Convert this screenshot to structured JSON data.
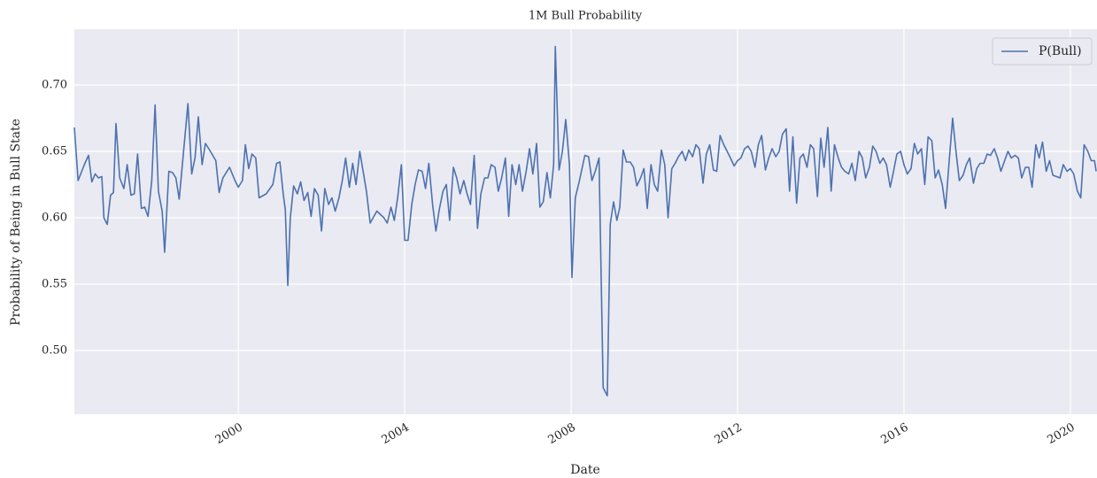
{
  "chart_data": {
    "type": "line",
    "title": "1M Bull Probability",
    "xlabel": "Date",
    "ylabel": "Probability of Being in Bull State",
    "x": [
      1996.06,
      1996.15,
      1996.3,
      1996.4,
      1996.48,
      1996.56,
      1996.64,
      1996.72,
      1996.77,
      1996.85,
      1996.93,
      1997.0,
      1997.06,
      1997.15,
      1997.25,
      1997.33,
      1997.42,
      1997.5,
      1997.58,
      1997.67,
      1997.75,
      1997.83,
      1997.92,
      1998.0,
      1998.08,
      1998.17,
      1998.23,
      1998.33,
      1998.42,
      1998.5,
      1998.58,
      1998.67,
      1998.79,
      1998.88,
      1998.96,
      1999.04,
      1999.13,
      1999.21,
      1999.33,
      1999.46,
      1999.54,
      1999.63,
      1999.79,
      1999.92,
      2000.0,
      2000.1,
      2000.17,
      2000.25,
      2000.33,
      2000.42,
      2000.5,
      2000.67,
      2000.83,
      2000.92,
      2001.0,
      2001.08,
      2001.13,
      2001.19,
      2001.25,
      2001.33,
      2001.42,
      2001.5,
      2001.58,
      2001.67,
      2001.75,
      2001.83,
      2001.92,
      2002.0,
      2002.08,
      2002.17,
      2002.25,
      2002.33,
      2002.42,
      2002.5,
      2002.58,
      2002.67,
      2002.75,
      2002.83,
      2002.92,
      2003.0,
      2003.08,
      2003.17,
      2003.33,
      2003.5,
      2003.58,
      2003.67,
      2003.75,
      2003.83,
      2003.92,
      2004.0,
      2004.08,
      2004.17,
      2004.25,
      2004.33,
      2004.42,
      2004.5,
      2004.58,
      2004.67,
      2004.75,
      2004.83,
      2004.92,
      2005.0,
      2005.08,
      2005.17,
      2005.25,
      2005.33,
      2005.42,
      2005.5,
      2005.58,
      2005.67,
      2005.75,
      2005.83,
      2005.92,
      2006.0,
      2006.08,
      2006.17,
      2006.25,
      2006.33,
      2006.42,
      2006.5,
      2006.58,
      2006.67,
      2006.75,
      2006.83,
      2006.92,
      2007.0,
      2007.08,
      2007.17,
      2007.25,
      2007.33,
      2007.42,
      2007.5,
      2007.58,
      2007.62,
      2007.71,
      2007.79,
      2007.87,
      2007.96,
      2008.02,
      2008.1,
      2008.2,
      2008.33,
      2008.42,
      2008.5,
      2008.58,
      2008.67,
      2008.77,
      2008.87,
      2008.94,
      2009.02,
      2009.1,
      2009.17,
      2009.25,
      2009.33,
      2009.42,
      2009.5,
      2009.58,
      2009.67,
      2009.75,
      2009.83,
      2009.92,
      2010.0,
      2010.08,
      2010.17,
      2010.25,
      2010.33,
      2010.42,
      2010.5,
      2010.58,
      2010.67,
      2010.75,
      2010.83,
      2010.92,
      2011.0,
      2011.08,
      2011.17,
      2011.25,
      2011.33,
      2011.42,
      2011.5,
      2011.58,
      2011.67,
      2011.83,
      2011.92,
      2012.0,
      2012.08,
      2012.17,
      2012.25,
      2012.33,
      2012.42,
      2012.5,
      2012.58,
      2012.67,
      2012.75,
      2012.83,
      2012.92,
      2013.0,
      2013.08,
      2013.17,
      2013.25,
      2013.33,
      2013.42,
      2013.5,
      2013.58,
      2013.67,
      2013.75,
      2013.83,
      2013.92,
      2014.0,
      2014.08,
      2014.17,
      2014.25,
      2014.33,
      2014.42,
      2014.5,
      2014.58,
      2014.67,
      2014.75,
      2014.83,
      2014.92,
      2015.0,
      2015.08,
      2015.17,
      2015.25,
      2015.33,
      2015.42,
      2015.5,
      2015.58,
      2015.67,
      2015.75,
      2015.83,
      2015.92,
      2016.0,
      2016.08,
      2016.17,
      2016.25,
      2016.33,
      2016.42,
      2016.5,
      2016.58,
      2016.67,
      2016.75,
      2016.83,
      2016.92,
      2017.0,
      2017.08,
      2017.17,
      2017.25,
      2017.33,
      2017.42,
      2017.5,
      2017.58,
      2017.67,
      2017.75,
      2017.83,
      2017.92,
      2018.0,
      2018.08,
      2018.17,
      2018.25,
      2018.33,
      2018.42,
      2018.5,
      2018.58,
      2018.67,
      2018.75,
      2018.83,
      2018.92,
      2019.0,
      2019.08,
      2019.17,
      2019.25,
      2019.33,
      2019.42,
      2019.5,
      2019.58,
      2019.67,
      2019.75,
      2019.83,
      2019.92,
      2020.0,
      2020.08,
      2020.17,
      2020.25,
      2020.33,
      2020.42,
      2020.5,
      2020.58,
      2020.62
    ],
    "series": [
      {
        "name": "P(Bull)",
        "color": "#4c72b0",
        "values": [
          0.668,
          0.628,
          0.64,
          0.647,
          0.627,
          0.633,
          0.63,
          0.631,
          0.6,
          0.595,
          0.617,
          0.619,
          0.671,
          0.63,
          0.622,
          0.64,
          0.617,
          0.618,
          0.648,
          0.607,
          0.608,
          0.601,
          0.628,
          0.685,
          0.62,
          0.605,
          0.574,
          0.635,
          0.634,
          0.63,
          0.614,
          0.645,
          0.686,
          0.633,
          0.645,
          0.676,
          0.64,
          0.656,
          0.65,
          0.643,
          0.619,
          0.63,
          0.638,
          0.628,
          0.623,
          0.628,
          0.655,
          0.637,
          0.648,
          0.645,
          0.615,
          0.618,
          0.625,
          0.641,
          0.642,
          0.618,
          0.606,
          0.549,
          0.6,
          0.624,
          0.618,
          0.627,
          0.613,
          0.619,
          0.601,
          0.622,
          0.617,
          0.59,
          0.622,
          0.61,
          0.615,
          0.605,
          0.615,
          0.628,
          0.645,
          0.623,
          0.641,
          0.625,
          0.65,
          0.635,
          0.62,
          0.596,
          0.605,
          0.6,
          0.596,
          0.608,
          0.598,
          0.615,
          0.64,
          0.583,
          0.583,
          0.61,
          0.625,
          0.636,
          0.635,
          0.622,
          0.641,
          0.61,
          0.59,
          0.606,
          0.62,
          0.625,
          0.598,
          0.638,
          0.63,
          0.618,
          0.628,
          0.618,
          0.61,
          0.647,
          0.592,
          0.618,
          0.63,
          0.63,
          0.64,
          0.638,
          0.62,
          0.63,
          0.645,
          0.601,
          0.64,
          0.625,
          0.64,
          0.62,
          0.635,
          0.652,
          0.633,
          0.656,
          0.608,
          0.612,
          0.634,
          0.615,
          0.64,
          0.729,
          0.636,
          0.65,
          0.674,
          0.64,
          0.555,
          0.615,
          0.628,
          0.647,
          0.646,
          0.628,
          0.635,
          0.645,
          0.472,
          0.466,
          0.595,
          0.612,
          0.598,
          0.608,
          0.651,
          0.642,
          0.642,
          0.638,
          0.624,
          0.63,
          0.637,
          0.607,
          0.64,
          0.625,
          0.62,
          0.651,
          0.64,
          0.6,
          0.637,
          0.641,
          0.646,
          0.65,
          0.643,
          0.651,
          0.646,
          0.655,
          0.652,
          0.626,
          0.648,
          0.655,
          0.636,
          0.635,
          0.662,
          0.655,
          0.645,
          0.639,
          0.643,
          0.645,
          0.652,
          0.654,
          0.65,
          0.638,
          0.655,
          0.662,
          0.636,
          0.645,
          0.652,
          0.646,
          0.65,
          0.663,
          0.667,
          0.62,
          0.661,
          0.611,
          0.645,
          0.648,
          0.638,
          0.655,
          0.652,
          0.616,
          0.66,
          0.638,
          0.668,
          0.62,
          0.655,
          0.645,
          0.638,
          0.635,
          0.633,
          0.641,
          0.628,
          0.65,
          0.645,
          0.63,
          0.638,
          0.654,
          0.65,
          0.641,
          0.645,
          0.64,
          0.623,
          0.635,
          0.648,
          0.65,
          0.64,
          0.633,
          0.637,
          0.656,
          0.648,
          0.652,
          0.625,
          0.661,
          0.658,
          0.63,
          0.636,
          0.625,
          0.607,
          0.64,
          0.675,
          0.65,
          0.628,
          0.632,
          0.64,
          0.645,
          0.626,
          0.637,
          0.641,
          0.641,
          0.648,
          0.647,
          0.652,
          0.645,
          0.635,
          0.643,
          0.65,
          0.645,
          0.647,
          0.645,
          0.63,
          0.638,
          0.638,
          0.623,
          0.655,
          0.645,
          0.657,
          0.635,
          0.643,
          0.632,
          0.631,
          0.63,
          0.64,
          0.635,
          0.637,
          0.633,
          0.62,
          0.615,
          0.655,
          0.65,
          0.643,
          0.643,
          0.635
        ]
      }
    ],
    "xlim": [
      1996.06,
      2020.64
    ],
    "xticks": [
      2000,
      2004,
      2008,
      2012,
      2016,
      2020
    ],
    "ylim": [
      0.452,
      0.742
    ],
    "yticks": [
      {
        "value": 0.5,
        "label": "0.50"
      },
      0.55,
      {
        "value": 0.6,
        "label": "0.60"
      },
      0.65,
      {
        "value": 0.7,
        "label": "0.70"
      }
    ],
    "grid": true,
    "legend": "upper right"
  }
}
